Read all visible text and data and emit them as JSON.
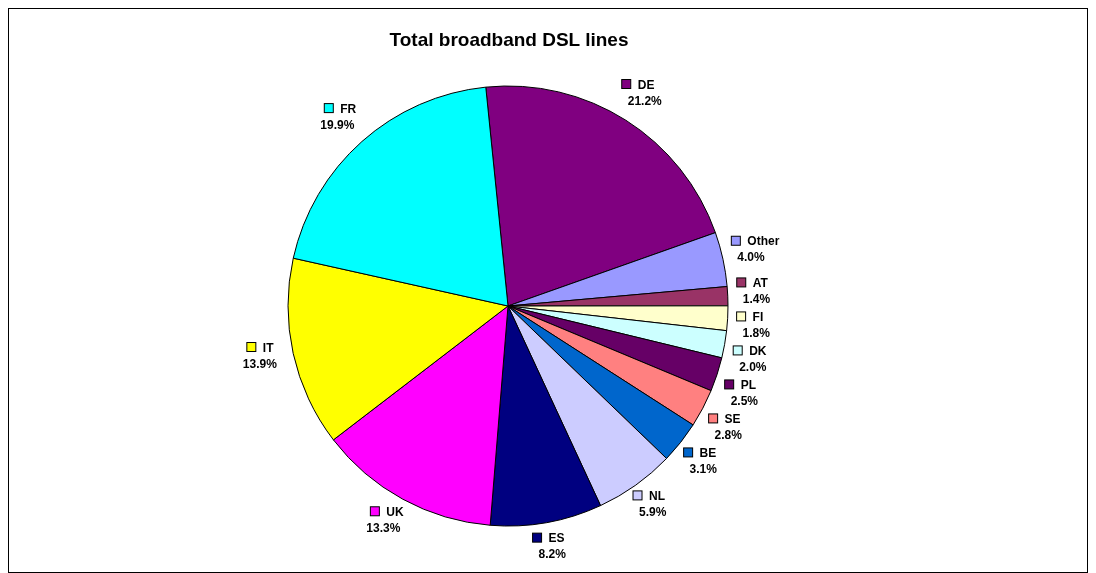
{
  "chart_data": {
    "type": "pie",
    "title": "Total broadband DSL lines",
    "categories": [
      "DE",
      "Other",
      "AT",
      "FI",
      "DK",
      "PL",
      "SE",
      "BE",
      "NL",
      "ES",
      "UK",
      "IT",
      "FR"
    ],
    "values": [
      21.2,
      4.0,
      1.4,
      1.8,
      2.0,
      2.5,
      2.8,
      3.1,
      5.9,
      8.2,
      13.3,
      13.9,
      19.9
    ],
    "value_labels": [
      "21.2%",
      "4.0%",
      "1.4%",
      "1.8%",
      "2.0%",
      "2.5%",
      "2.8%",
      "3.1%",
      "5.9%",
      "8.2%",
      "13.3%",
      "13.9%",
      "19.9%"
    ],
    "legend": "right",
    "colors": [
      "#800080",
      "#9999ff",
      "#993366",
      "#ffffcc",
      "#ccffff",
      "#660066",
      "#ff8080",
      "#0066cc",
      "#ccccff",
      "#000080",
      "#ff00ff",
      "#ffff00",
      "#00ffff"
    ]
  }
}
